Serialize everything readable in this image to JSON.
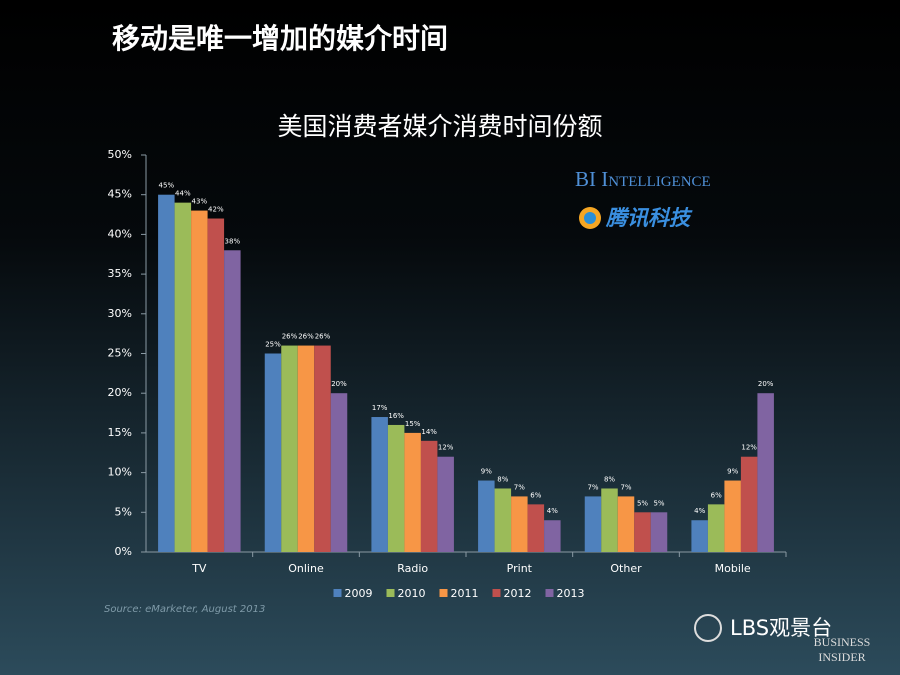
{
  "slide_title": "移动是唯一增加的媒介时间",
  "chart_data": {
    "type": "bar",
    "title": "美国消费者媒介消费时间份额",
    "source": "Source: eMarketer, August 2013",
    "categories": [
      "TV",
      "Online",
      "Radio",
      "Print",
      "Other",
      "Mobile"
    ],
    "series": [
      {
        "name": "2009",
        "color": "#4f81bd",
        "values": [
          45,
          25,
          17,
          9,
          7,
          4
        ],
        "value_labels": [
          "45%",
          "25%",
          "17%",
          "9%",
          "7%",
          "4%"
        ]
      },
      {
        "name": "2010",
        "color": "#9bbb59",
        "values": [
          44,
          26,
          16,
          8,
          8,
          6
        ],
        "value_labels": [
          "44%",
          "26%",
          "16%",
          "8%",
          "8%",
          "6%"
        ]
      },
      {
        "name": "2011",
        "color": "#f79646",
        "values": [
          43,
          26,
          15,
          7,
          7,
          9
        ],
        "value_labels": [
          "43%",
          "26%",
          "15%",
          "7%",
          "7%",
          "9%"
        ]
      },
      {
        "name": "2012",
        "color": "#c0504d",
        "values": [
          42,
          26,
          14,
          6,
          5,
          12
        ],
        "value_labels": [
          "42%",
          "26%",
          "14%",
          "6%",
          "5%",
          "12%"
        ]
      },
      {
        "name": "2013",
        "color": "#8064a2",
        "values": [
          38,
          20,
          12,
          4,
          5,
          20
        ],
        "value_labels": [
          "38%",
          "20%",
          "12%",
          "4%",
          "5%",
          "20%"
        ]
      }
    ],
    "ylim": [
      0,
      50
    ],
    "yticks": [
      {
        "value": 0,
        "label": "0%"
      },
      {
        "value": 5,
        "label": "5%"
      },
      {
        "value": 10,
        "label": "10%"
      },
      {
        "value": 15,
        "label": "15%"
      },
      {
        "value": 20,
        "label": "20%"
      },
      {
        "value": 25,
        "label": "25%"
      },
      {
        "value": 30,
        "label": "30%"
      },
      {
        "value": 35,
        "label": "35%"
      },
      {
        "value": 40,
        "label": "40%"
      },
      {
        "value": 45,
        "label": "45%"
      },
      {
        "value": 50,
        "label": "50%"
      }
    ],
    "grid": false,
    "legend": "bottom"
  },
  "logos": {
    "bi": "BI Intelligence",
    "tencent": "腾讯科技",
    "wechat": "LBS观景台",
    "bi_line1": "BUSINESS",
    "bi_line2": "INSIDER"
  }
}
